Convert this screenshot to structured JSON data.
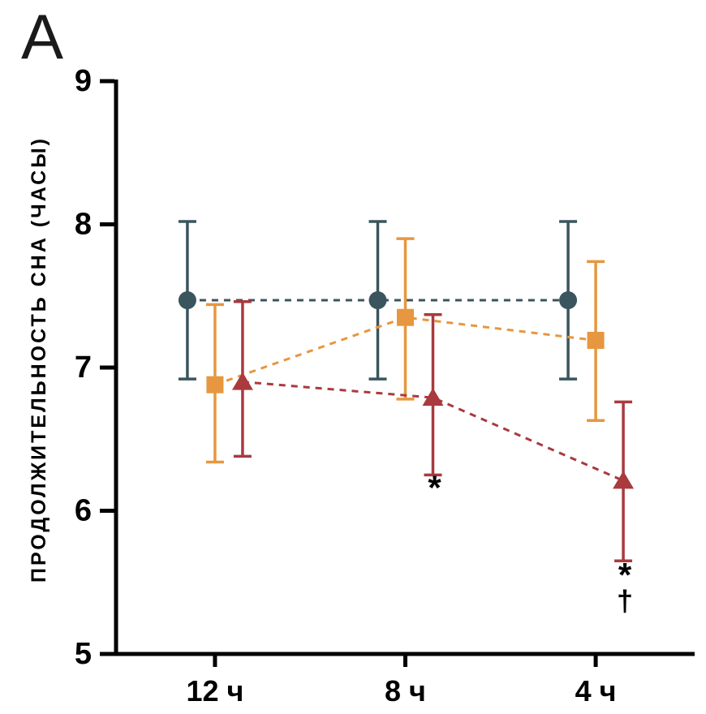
{
  "panel_label": "A",
  "chart_data": {
    "type": "line",
    "title": "",
    "xlabel": "",
    "ylabel": "ПРОДОЛЖИТЕЛЬНОСТЬ СНА (ЧАСЫ)",
    "categories": [
      "12 ч",
      "8 ч",
      "4 ч"
    ],
    "ylim": [
      5,
      9
    ],
    "yticks": [
      9,
      8,
      7,
      6,
      5
    ],
    "grid": false,
    "legend": "none",
    "line_style": "dashed",
    "series": [
      {
        "name": "circles-series",
        "marker": "circle",
        "color": "#3a555d",
        "values": [
          7.47,
          7.47,
          7.47
        ],
        "err_low": [
          6.92,
          6.92,
          6.92
        ],
        "err_high": [
          8.02,
          8.02,
          8.02
        ],
        "offset": -34
      },
      {
        "name": "squares-series",
        "marker": "square",
        "color": "#e6973f",
        "values": [
          6.88,
          7.35,
          7.19
        ],
        "err_low": [
          6.34,
          6.78,
          6.63
        ],
        "err_high": [
          7.44,
          7.9,
          7.74
        ],
        "offset": 0
      },
      {
        "name": "triangles-series",
        "marker": "triangle",
        "color": "#a93a3e",
        "values": [
          6.9,
          6.79,
          6.21
        ],
        "err_low": [
          6.38,
          6.25,
          5.65
        ],
        "err_high": [
          7.46,
          7.37,
          6.76
        ],
        "offset": 34
      }
    ],
    "annotations": [
      {
        "text": "*",
        "x_category": 1,
        "series": 2,
        "y": 6.08,
        "dx": 2
      },
      {
        "text": "*",
        "x_category": 2,
        "series": 2,
        "y": 5.47,
        "dx": 2
      },
      {
        "text": "†",
        "x_category": 2,
        "series": 2,
        "y": 5.3,
        "dx": 2
      }
    ]
  }
}
